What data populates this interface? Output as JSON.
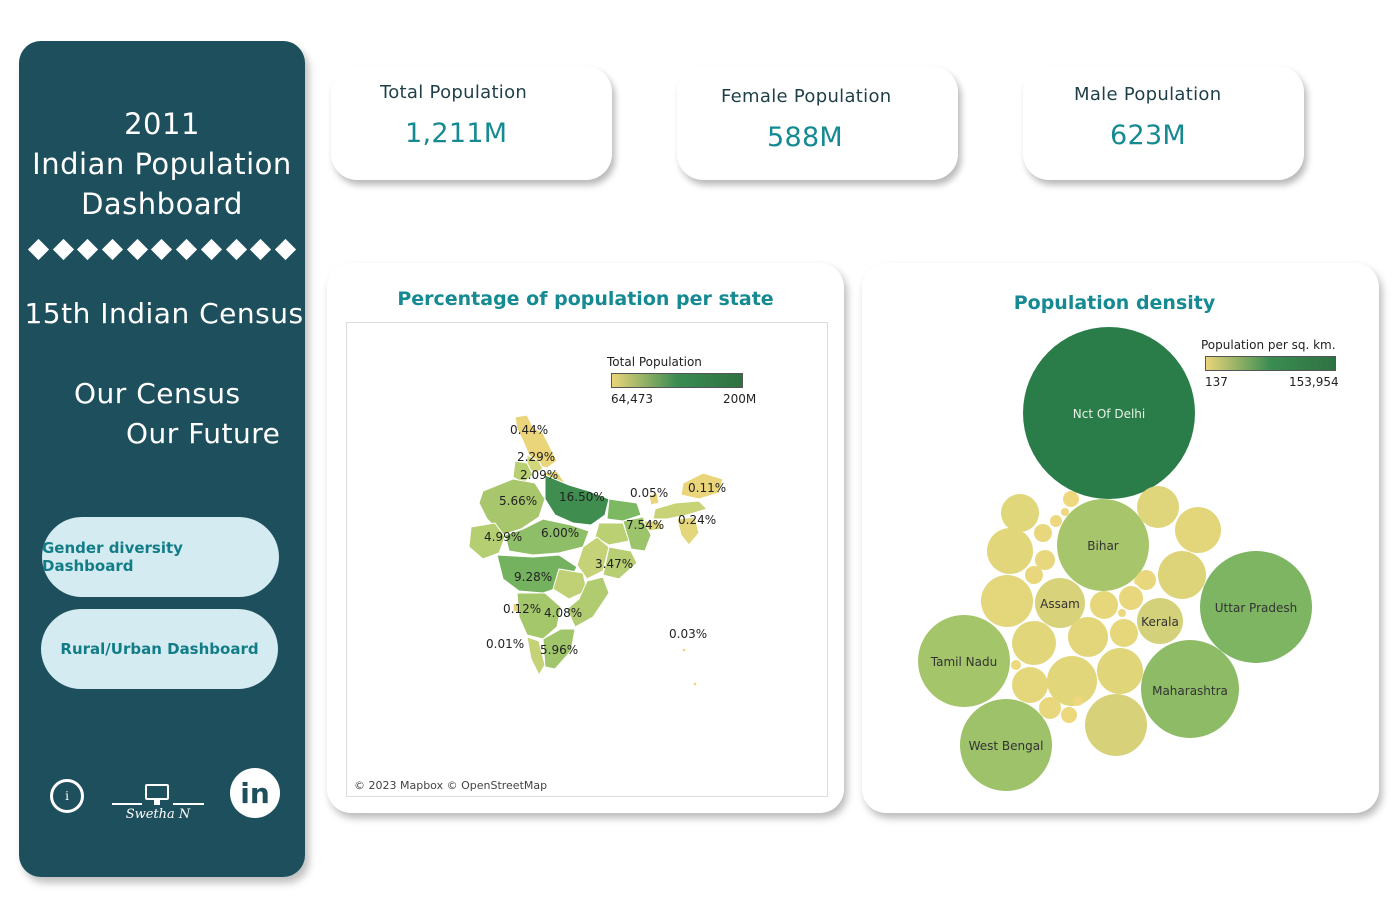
{
  "sidebar": {
    "year": "2011",
    "title_line1": "Indian Population",
    "title_line2": "Dashboard",
    "census": "15th Indian Census",
    "motto_line1": "Our Census",
    "motto_line2": "Our Future",
    "nav": {
      "gender": "Gender diversity Dashboard",
      "rural": "Rural/Urban Dashboard"
    },
    "info_icon": "info-icon",
    "author": "Swetha N",
    "linkedin": "in"
  },
  "kpis": {
    "total": {
      "label": "Total Population",
      "value": "1,211M"
    },
    "female": {
      "label": "Female Population",
      "value": "588M"
    },
    "male": {
      "label": "Male Population",
      "value": "623M"
    }
  },
  "map_panel": {
    "title": "Percentage of population per state",
    "legend_title": "Total Population",
    "legend_min": "64,473",
    "legend_max": "200M",
    "credit": "© 2023 Mapbox © OpenStreetMap",
    "colors": {
      "low": "#ead57a",
      "high": "#2e7242"
    }
  },
  "bubble_panel": {
    "title": "Population density",
    "legend_title": "Population per sq. km.",
    "legend_min": "137",
    "legend_max": "153,954"
  },
  "chart_data": [
    {
      "type": "map",
      "title": "Percentage of population per state",
      "legend": "Total Population",
      "color_range": [
        "64,473",
        "200M"
      ],
      "labels": [
        "0.44%",
        "2.29%",
        "2.09%",
        "16.50%",
        "5.66%",
        "0.05%",
        "0.11%",
        "7.54%",
        "0.24%",
        "4.99%",
        "6.00%",
        "3.47%",
        "9.28%",
        "0.12%",
        "4.08%",
        "0.01%",
        "5.96%",
        "0.03%"
      ]
    },
    {
      "type": "bubble",
      "title": "Population density",
      "legend": "Population per sq. km.",
      "color_range": [
        "137",
        "153,954"
      ],
      "labeled_bubbles": [
        "Nct Of Delhi",
        "Bihar",
        "Uttar Pradesh",
        "Assam",
        "Kerala",
        "Tamil Nadu",
        "Maharashtra",
        "West Bengal"
      ]
    }
  ]
}
